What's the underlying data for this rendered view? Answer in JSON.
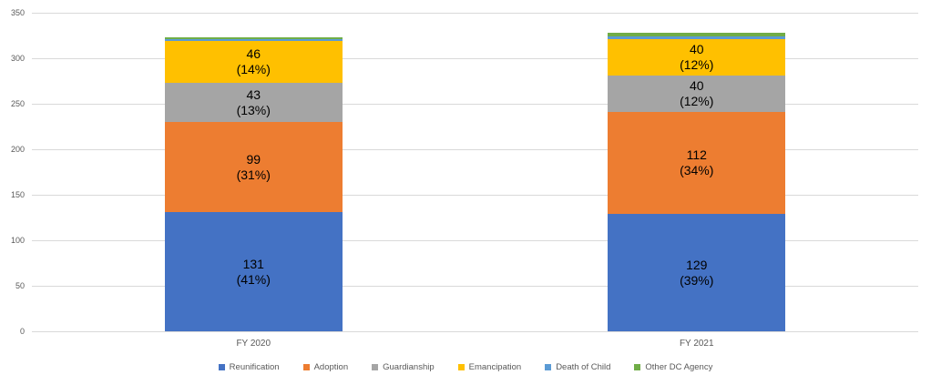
{
  "chart_data": {
    "type": "bar",
    "stacked": true,
    "title": "",
    "xlabel": "",
    "ylabel": "",
    "categories": [
      "FY 2020",
      "FY 2021"
    ],
    "series": [
      {
        "name": "Reunification",
        "color": "#4472C4",
        "values": [
          131,
          129
        ],
        "labels": [
          "131\n(41%)",
          "129\n(39%)"
        ]
      },
      {
        "name": "Adoption",
        "color": "#ED7D31",
        "values": [
          99,
          112
        ],
        "labels": [
          "99\n(31%)",
          "112\n(34%)"
        ]
      },
      {
        "name": "Guardianship",
        "color": "#A5A5A5",
        "values": [
          43,
          40
        ],
        "labels": [
          "43\n(13%)",
          "40\n(12%)"
        ]
      },
      {
        "name": "Emancipation",
        "color": "#FFC000",
        "values": [
          46,
          40
        ],
        "labels": [
          "46\n(14%)",
          "40\n(12%)"
        ]
      },
      {
        "name": "Death of Child",
        "color": "#5B9BD5",
        "values": [
          2,
          3
        ],
        "labels": [
          null,
          null
        ]
      },
      {
        "name": "Other DC Agency",
        "color": "#70AD47",
        "values": [
          2,
          4
        ],
        "labels": [
          null,
          null
        ]
      }
    ],
    "ylim": [
      0,
      350
    ],
    "yticks": [
      0,
      50,
      100,
      150,
      200,
      250,
      300,
      350
    ],
    "grid": true,
    "legend_position": "bottom"
  },
  "colors": {
    "background": "#FFFFFF",
    "gridline": "#D9D9D9",
    "axis_text": "#595959",
    "data_label_text": "#000000"
  }
}
